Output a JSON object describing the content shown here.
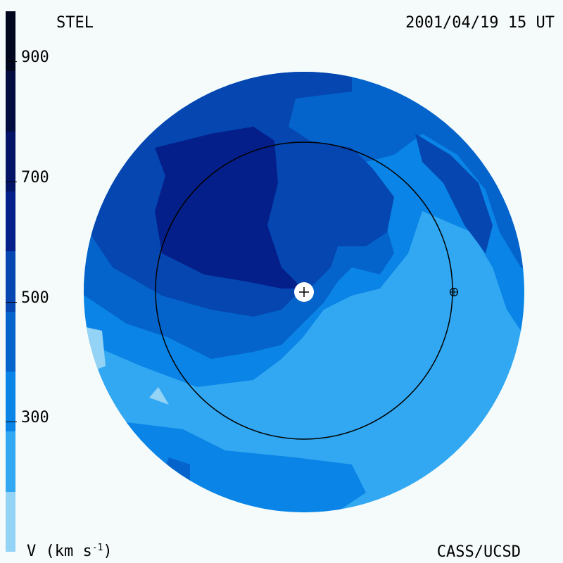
{
  "header": {
    "source": "STEL",
    "datetime": "2001/04/19 15 UT"
  },
  "footer": {
    "credit": "CASS/UCSD"
  },
  "colorbar": {
    "title": "V (km s",
    "title_exp": "-1",
    "title_end": ")",
    "ticks": [
      {
        "label": "900",
        "value": 900
      },
      {
        "label": "700",
        "value": 700
      },
      {
        "label": "500",
        "value": 500
      },
      {
        "label": "300",
        "value": 300
      }
    ],
    "range": [
      100,
      1000
    ],
    "bands": [
      {
        "from": 100,
        "to": 200,
        "color": "#93d3f5"
      },
      {
        "from": 200,
        "to": 300,
        "color": "#33a8f2"
      },
      {
        "from": 300,
        "to": 400,
        "color": "#0a84e6"
      },
      {
        "from": 400,
        "to": 500,
        "color": "#0464cb"
      },
      {
        "from": 500,
        "to": 600,
        "color": "#0546b0"
      },
      {
        "from": 600,
        "to": 700,
        "color": "#051f8a"
      },
      {
        "from": 700,
        "to": 800,
        "color": "#031366"
      },
      {
        "from": 800,
        "to": 900,
        "color": "#020c40"
      },
      {
        "from": 900,
        "to": 1000,
        "color": "#01061f"
      }
    ]
  },
  "map": {
    "center_marker": "plus-icon",
    "earth_marker": "circle-plus-icon",
    "orbit_ring": "earth-orbit"
  }
}
